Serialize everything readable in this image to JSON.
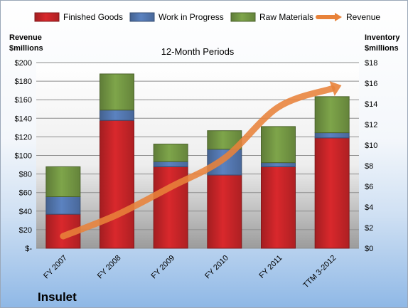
{
  "chart_data": {
    "type": "bar",
    "title": "12-Month Periods",
    "company": "Insulet",
    "left_axis_title": [
      "Revenue",
      "$millions"
    ],
    "right_axis_title": [
      "Inventory",
      "$millions"
    ],
    "categories": [
      "FY 2007",
      "FY 2008",
      "FY 2009",
      "FY 2010",
      "FY 2011",
      "TTM 3-2012"
    ],
    "left_ylim": [
      0,
      200
    ],
    "right_ylim": [
      0,
      18
    ],
    "left_ticks": [
      "$-",
      "$20",
      "$40",
      "$60",
      "$80",
      "$100",
      "$120",
      "$140",
      "$160",
      "$180",
      "$200"
    ],
    "right_ticks": [
      "$0",
      "$2",
      "$4",
      "$6",
      "$8",
      "$10",
      "$12",
      "$14",
      "$16",
      "$18"
    ],
    "stacked": true,
    "grid": true,
    "legend_position": "top",
    "series": [
      {
        "name": "Finished Goods",
        "axis": "right",
        "kind": "bar",
        "color": "#d9282c",
        "values": [
          3.3,
          12.4,
          7.9,
          7.1,
          7.9,
          10.7
        ]
      },
      {
        "name": "Work in Progress",
        "axis": "right",
        "kind": "bar",
        "color": "#5b82c0",
        "values": [
          1.7,
          1.0,
          0.5,
          2.5,
          0.4,
          0.5
        ]
      },
      {
        "name": "Raw Materials",
        "axis": "right",
        "kind": "bar",
        "color": "#7ea54a",
        "values": [
          2.9,
          3.5,
          1.7,
          1.8,
          3.5,
          3.5
        ]
      },
      {
        "name": "Revenue",
        "axis": "left",
        "kind": "line",
        "color": "#e8823a",
        "values": [
          13,
          36,
          66,
          97,
          152,
          172
        ]
      }
    ]
  }
}
